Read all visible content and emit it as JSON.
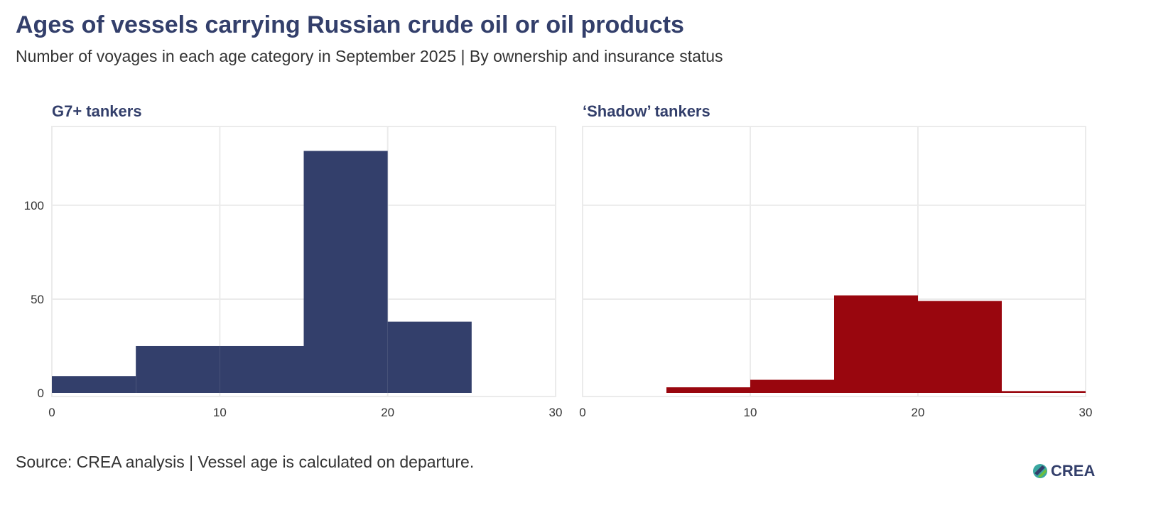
{
  "title": "Ages of vessels carrying Russian crude oil or oil products",
  "subtitle": "Number of voyages in each age category in September 2025 | By ownership and insurance status",
  "source": "Source: CREA analysis | Vessel age is calculated on departure.",
  "logo_text": "CREA",
  "chart_data": [
    {
      "type": "bar",
      "title": "G7+ tankers",
      "color": "#333f6b",
      "bins": [
        [
          0,
          5
        ],
        [
          5,
          10
        ],
        [
          10,
          15
        ],
        [
          15,
          20
        ],
        [
          20,
          25
        ],
        [
          25,
          30
        ]
      ],
      "values": [
        9,
        25,
        25,
        129,
        38,
        0
      ],
      "xlim": [
        0,
        30
      ],
      "ylim": [
        0,
        142
      ],
      "xticks": [
        "0",
        "10",
        "20",
        "30"
      ],
      "yticks": [
        "0",
        "50",
        "100"
      ],
      "grid": true
    },
    {
      "type": "bar",
      "title": "‘Shadow’ tankers",
      "color": "#99060e",
      "bins": [
        [
          0,
          5
        ],
        [
          5,
          10
        ],
        [
          10,
          15
        ],
        [
          15,
          20
        ],
        [
          20,
          25
        ],
        [
          25,
          30
        ]
      ],
      "values": [
        0,
        3,
        7,
        52,
        49,
        1
      ],
      "xlim": [
        0,
        30
      ],
      "ylim": [
        0,
        142
      ],
      "xticks": [
        "0",
        "10",
        "20",
        "30"
      ],
      "yticks": [
        "0",
        "50",
        "100"
      ],
      "grid": true
    }
  ]
}
